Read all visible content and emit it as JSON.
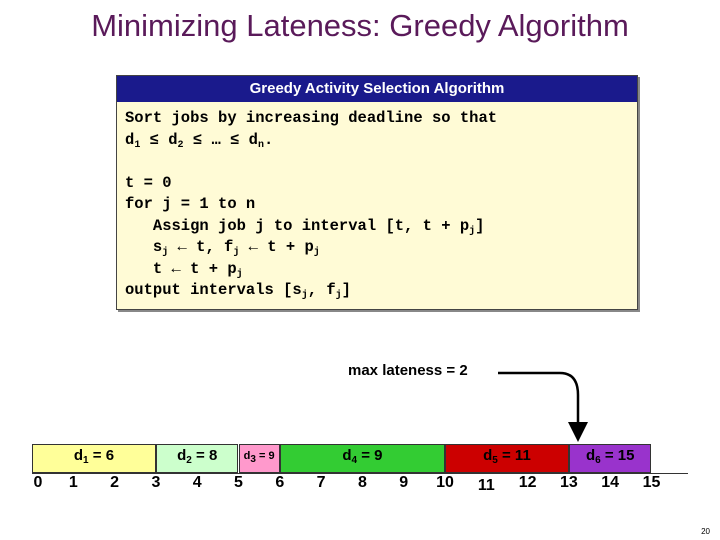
{
  "slide": {
    "title": "Minimizing Lateness:  Greedy Algorithm",
    "page_number": "20"
  },
  "algorithm": {
    "header": "Greedy Activity Selection Algorithm",
    "lines": [
      {
        "pre": "Sort jobs by increasing deadline so that"
      },
      {
        "pre": "d",
        "s1": "1",
        "m1": " ≤ d",
        "s2": "2",
        "m2": " ≤ … ≤ d",
        "s3": "n",
        "m3": "."
      },
      {
        "pre": ""
      },
      {
        "pre": "t = 0"
      },
      {
        "pre": "for j = 1 to n"
      },
      {
        "pre": "   Assign job j to interval [t, t + p",
        "s1": "j",
        "m1": "]"
      },
      {
        "pre": "   s",
        "s1": "j",
        "m1": " ← t, f",
        "s2": "j",
        "m2": " ← t + p",
        "s3": "j"
      },
      {
        "pre": "   t ← t + p",
        "s1": "j"
      },
      {
        "pre": "output intervals [s",
        "s1": "j",
        "m1": ", f",
        "s2": "j",
        "m2": "]"
      }
    ]
  },
  "annotation": {
    "max_lateness": "max lateness = 2"
  },
  "schedule": {
    "jobs": [
      {
        "label": "d",
        "sub": "1",
        "rest": " = 6",
        "start": 0,
        "end": 3,
        "color": "#ffff99"
      },
      {
        "label": "d",
        "sub": "2",
        "rest": " = 8",
        "start": 3,
        "end": 5,
        "color": "#ccffcc"
      },
      {
        "label": "d",
        "sub": "3",
        "rest": " = 9",
        "start": 5,
        "end": 6,
        "color": "#ff99cc"
      },
      {
        "label": "d",
        "sub": "4",
        "rest": " = 9",
        "start": 6,
        "end": 10,
        "color": "#33cc33"
      },
      {
        "label": "d",
        "sub": "5",
        "rest": " = 11",
        "start": 10,
        "end": 13,
        "color": "#cc0000"
      },
      {
        "label": "d",
        "sub": "6",
        "rest": " = 15",
        "start": 13,
        "end": 15,
        "color": "#9933cc"
      }
    ],
    "ticks": [
      "0",
      "1",
      "2",
      "3",
      "4",
      "5",
      "6",
      "7",
      "8",
      "9",
      "10",
      "11",
      "12",
      "13",
      "14",
      "15"
    ]
  }
}
